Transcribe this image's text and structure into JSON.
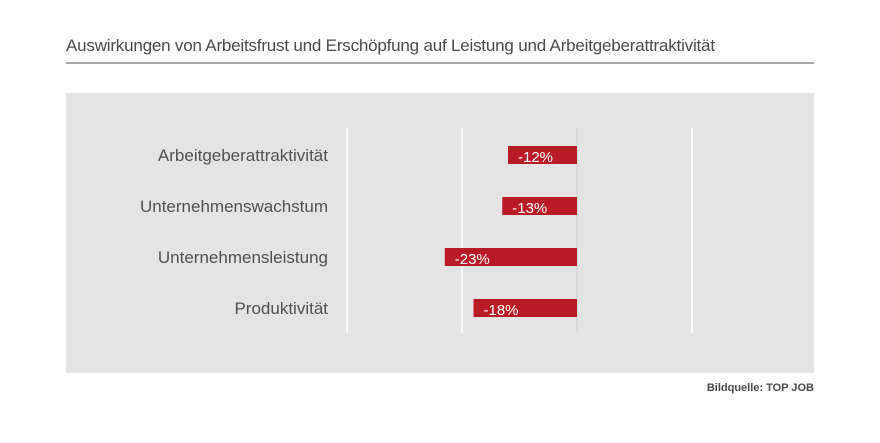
{
  "chart_data": {
    "type": "bar",
    "orientation": "horizontal",
    "title": "Auswirkungen von Arbeitsfrust und Erschöpfung auf Leistung und Arbeitgeberattraktivität",
    "categories": [
      "Arbeitgeberattraktivität",
      "Unternehmenswachstum",
      "Unternehmensleistung",
      "Produktivität"
    ],
    "values": [
      -12,
      -13,
      -23,
      -18
    ],
    "data_labels": [
      "-12%",
      "-13%",
      "-23%",
      "-18%"
    ],
    "unit": "%",
    "xlim": [
      -40,
      20
    ],
    "gridlines": [
      -40,
      -20,
      0,
      20
    ],
    "grid": true,
    "xlabel": "",
    "ylabel": "",
    "bar_color": "#b81b26",
    "background_color": "#e4e4e4"
  },
  "source": "Bildquelle: TOP JOB"
}
